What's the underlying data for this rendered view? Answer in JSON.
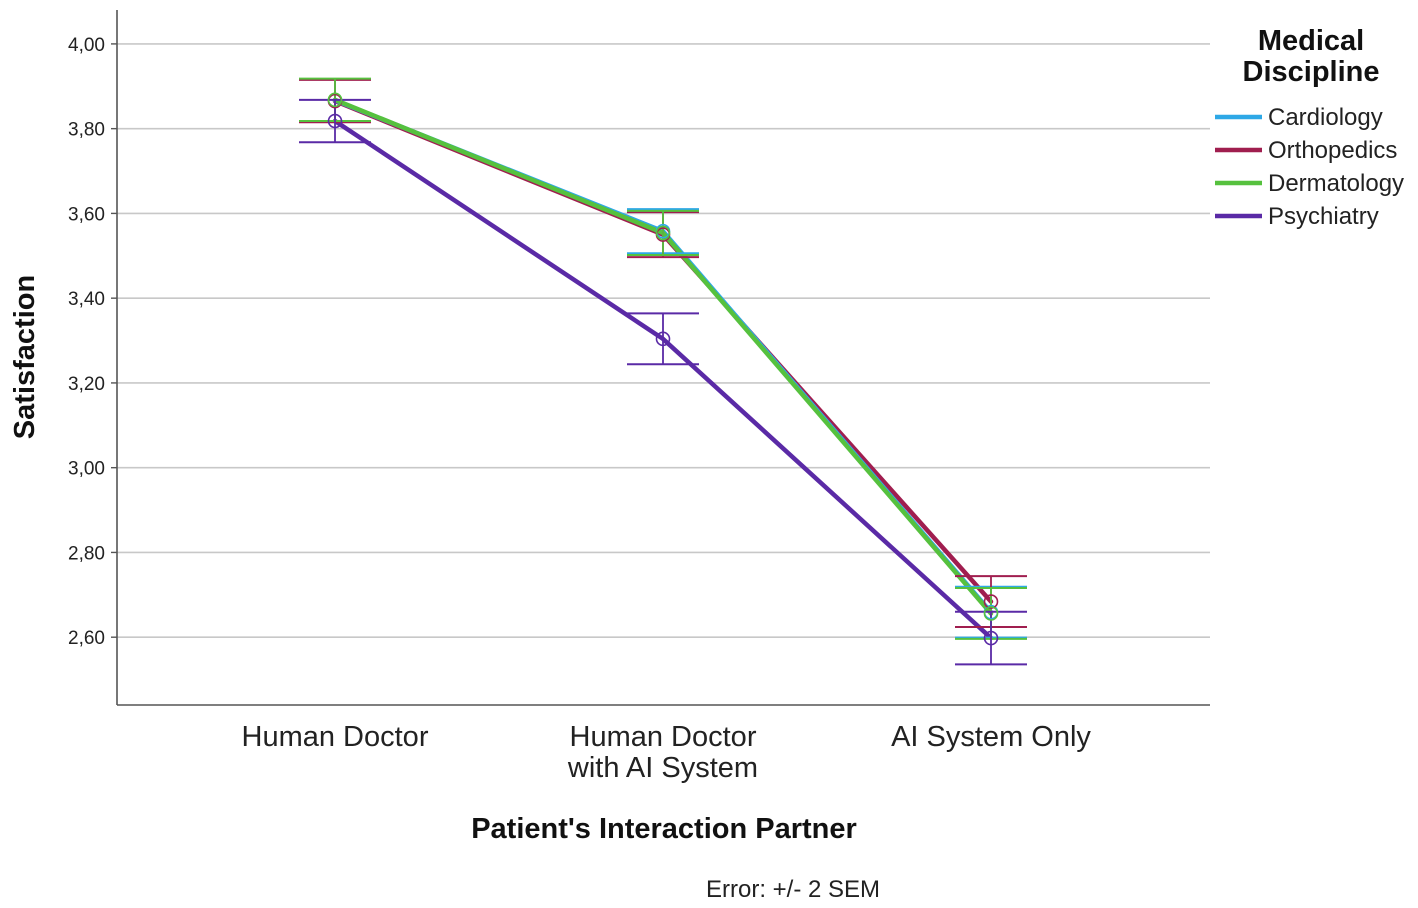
{
  "chart_data": {
    "type": "line",
    "categories": [
      [
        "Human Doctor"
      ],
      [
        "Human Doctor",
        "with AI System"
      ],
      [
        "AI System Only"
      ]
    ],
    "series": [
      {
        "name": "Cardiology",
        "color": "#2EA8E6",
        "values": [
          3.867,
          3.558,
          2.659
        ],
        "err": [
          0.05,
          0.052,
          0.06
        ]
      },
      {
        "name": "Orthopedics",
        "color": "#A01E4F",
        "values": [
          3.865,
          3.55,
          2.684
        ],
        "err": [
          0.05,
          0.053,
          0.06
        ]
      },
      {
        "name": "Dermatology",
        "color": "#56C13E",
        "values": [
          3.868,
          3.554,
          2.656
        ],
        "err": [
          0.05,
          0.052,
          0.06
        ]
      },
      {
        "name": "Psychiatry",
        "color": "#5A2AA6",
        "values": [
          3.818,
          3.304,
          2.598
        ],
        "err": [
          0.05,
          0.06,
          0.062
        ]
      }
    ],
    "ylabel": "Satisfaction",
    "xlabel": "Patient's Interaction Partner",
    "ylim": [
      2.44,
      4.08
    ],
    "yticks": [
      "4,00",
      "3,80",
      "3,60",
      "3,40",
      "3,20",
      "3,00",
      "2,80",
      "2,60"
    ],
    "ytick_values": [
      4.0,
      3.8,
      3.6,
      3.4,
      3.2,
      3.0,
      2.8,
      2.6
    ],
    "legend_title": [
      "Medical",
      "Discipline"
    ],
    "legend_position": "right",
    "grid": true,
    "error_note": "Error: +/- 2 SEM"
  }
}
